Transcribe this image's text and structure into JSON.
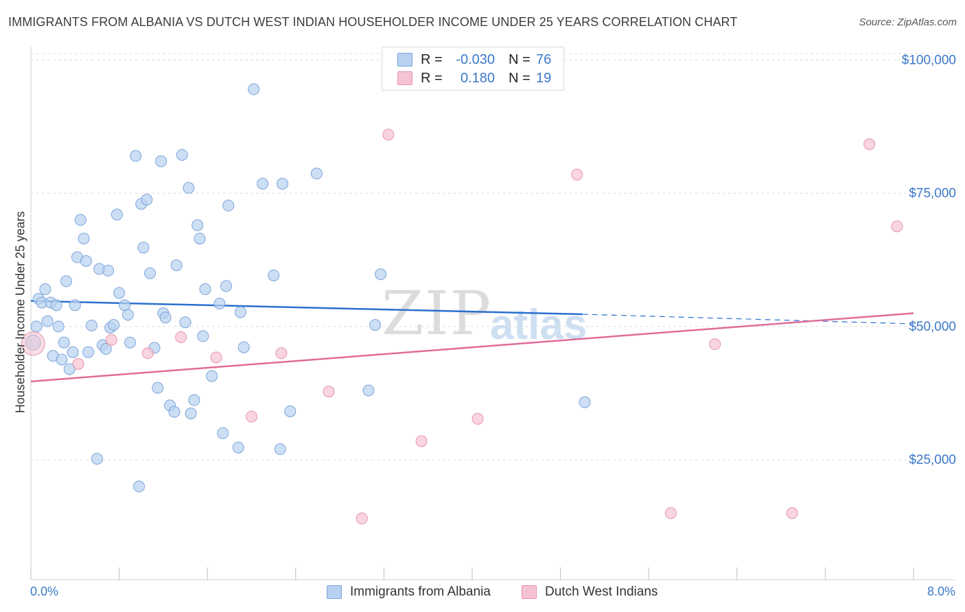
{
  "header": {
    "title": "IMMIGRANTS FROM ALBANIA VS DUTCH WEST INDIAN HOUSEHOLDER INCOME UNDER 25 YEARS CORRELATION CHART",
    "source": "Source: ZipAtlas.com"
  },
  "watermark": {
    "part1": "ZIP",
    "part2": "atlas"
  },
  "colors": {
    "blue": "#3a78c9",
    "blue_fill": "#b8d1f0",
    "blue_stroke": "#7ba3db",
    "blue_line": "#2a6fd0",
    "pink_fill": "#f6c3d2",
    "pink_stroke": "#e493ad",
    "pink_line": "#e06b98",
    "grid": "#dddddd"
  },
  "legend": {
    "rows": [
      {
        "r_label": "R =",
        "r_value": "-0.030",
        "n_label": "N =",
        "n_value": "76"
      },
      {
        "r_label": "R =",
        "r_value": "0.180",
        "n_label": "N =",
        "n_value": "19"
      }
    ]
  },
  "bottom_legend": {
    "series1": "Immigrants from Albania",
    "series2": "Dutch West Indians"
  },
  "chart_data": {
    "type": "scatter",
    "title": "IMMIGRANTS FROM ALBANIA VS DUTCH WEST INDIAN HOUSEHOLDER INCOME UNDER 25 YEARS CORRELATION CHART",
    "xlabel": "",
    "ylabel": "Householder Income Under 25 years",
    "xlim": [
      0,
      8
    ],
    "ylim": [
      2500,
      102500
    ],
    "x_tick_labels": [
      "0.0%",
      "8.0%"
    ],
    "y_ticks": [
      {
        "value": 25000,
        "label": "$25,000"
      },
      {
        "value": 50000,
        "label": "$50,000"
      },
      {
        "value": 75000,
        "label": "$75,000"
      },
      {
        "value": 100000,
        "label": "$100,000"
      }
    ],
    "grid": true,
    "legend_position": "top-center",
    "series": [
      {
        "name": "Immigrants from Albania",
        "trend": {
          "x": [
            0,
            5.0
          ],
          "y": [
            54800,
            52300
          ],
          "dashed_extension": {
            "x": [
              5.0,
              8.0
            ],
            "y": [
              52300,
              50500
            ]
          }
        },
        "points": [
          [
            0.02,
            47000
          ],
          [
            0.05,
            50000
          ],
          [
            0.07,
            55200
          ],
          [
            0.1,
            54500
          ],
          [
            0.13,
            57000
          ],
          [
            0.15,
            51000
          ],
          [
            0.18,
            54500
          ],
          [
            0.2,
            44500
          ],
          [
            0.23,
            54000
          ],
          [
            0.25,
            50000
          ],
          [
            0.28,
            43800
          ],
          [
            0.3,
            47000
          ],
          [
            0.32,
            58500
          ],
          [
            0.35,
            42000
          ],
          [
            0.38,
            45200
          ],
          [
            0.4,
            54000
          ],
          [
            0.42,
            63000
          ],
          [
            0.45,
            70000
          ],
          [
            0.48,
            66500
          ],
          [
            0.5,
            62300
          ],
          [
            0.52,
            45200
          ],
          [
            0.55,
            50200
          ],
          [
            0.6,
            25200
          ],
          [
            0.62,
            60800
          ],
          [
            0.65,
            46500
          ],
          [
            0.68,
            45800
          ],
          [
            0.7,
            60500
          ],
          [
            0.72,
            49800
          ],
          [
            0.75,
            50300
          ],
          [
            0.78,
            71000
          ],
          [
            0.8,
            56300
          ],
          [
            0.85,
            54000
          ],
          [
            0.88,
            52200
          ],
          [
            0.9,
            47000
          ],
          [
            0.95,
            82000
          ],
          [
            0.98,
            20000
          ],
          [
            1.0,
            73000
          ],
          [
            1.02,
            64800
          ],
          [
            1.05,
            73800
          ],
          [
            1.08,
            60000
          ],
          [
            1.12,
            46000
          ],
          [
            1.15,
            38500
          ],
          [
            1.18,
            81000
          ],
          [
            1.2,
            52500
          ],
          [
            1.22,
            51700
          ],
          [
            1.26,
            35200
          ],
          [
            1.3,
            34000
          ],
          [
            1.32,
            61500
          ],
          [
            1.37,
            82200
          ],
          [
            1.4,
            50800
          ],
          [
            1.43,
            76000
          ],
          [
            1.45,
            33700
          ],
          [
            1.48,
            36200
          ],
          [
            1.51,
            69000
          ],
          [
            1.53,
            66500
          ],
          [
            1.56,
            48200
          ],
          [
            1.58,
            57000
          ],
          [
            1.64,
            40700
          ],
          [
            1.71,
            54300
          ],
          [
            1.74,
            30000
          ],
          [
            1.77,
            57600
          ],
          [
            1.79,
            72700
          ],
          [
            1.88,
            27300
          ],
          [
            1.9,
            52700
          ],
          [
            1.93,
            46100
          ],
          [
            2.02,
            94500
          ],
          [
            2.1,
            76800
          ],
          [
            2.2,
            59600
          ],
          [
            2.26,
            27000
          ],
          [
            2.28,
            76800
          ],
          [
            2.35,
            34100
          ],
          [
            2.59,
            78700
          ],
          [
            3.06,
            38000
          ],
          [
            3.12,
            50300
          ],
          [
            3.17,
            59800
          ],
          [
            5.02,
            35800
          ]
        ]
      },
      {
        "name": "Dutch West Indians",
        "trend": {
          "x": [
            0,
            8.0
          ],
          "y": [
            39700,
            52500
          ]
        },
        "points": [
          [
            0.02,
            46800
          ],
          [
            0.43,
            43000
          ],
          [
            0.73,
            47500
          ],
          [
            1.06,
            45000
          ],
          [
            1.36,
            48000
          ],
          [
            1.68,
            44200
          ],
          [
            2.0,
            33100
          ],
          [
            2.27,
            45000
          ],
          [
            2.7,
            37800
          ],
          [
            3.0,
            14000
          ],
          [
            3.24,
            86000
          ],
          [
            3.54,
            28500
          ],
          [
            4.05,
            32700
          ],
          [
            4.95,
            78500
          ],
          [
            5.8,
            15000
          ],
          [
            6.2,
            46700
          ],
          [
            6.9,
            15000
          ],
          [
            7.6,
            84200
          ],
          [
            7.85,
            68800
          ]
        ]
      }
    ]
  }
}
